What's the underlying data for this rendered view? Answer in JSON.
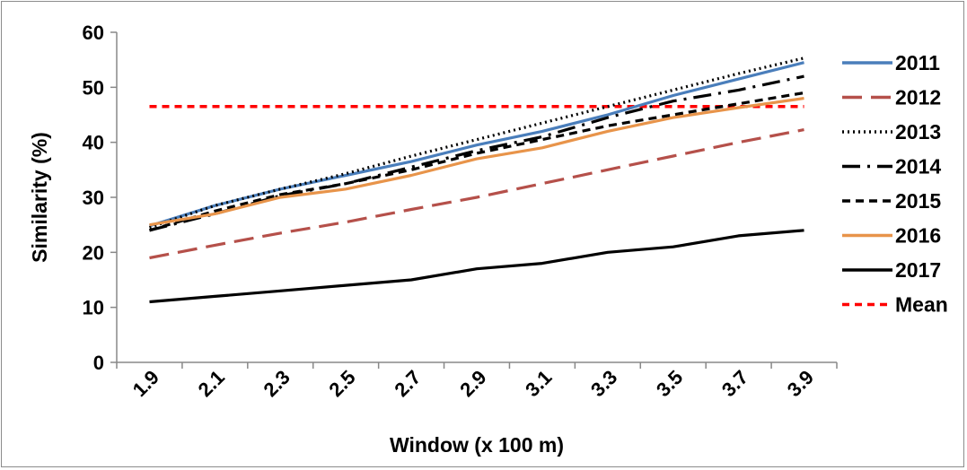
{
  "chart_data": {
    "type": "line",
    "xlabel": "Window (x 100 m)",
    "ylabel": "Similarity (%)",
    "x": [
      "1.9",
      "2.1",
      "2.3",
      "2.5",
      "2.7",
      "2.9",
      "3.1",
      "3.3",
      "3.5",
      "3.7",
      "3.9"
    ],
    "ylim": [
      0,
      60
    ],
    "yticks": [
      "0",
      "10",
      "20",
      "30",
      "40",
      "50",
      "60"
    ],
    "grid": false,
    "legend_position": "right",
    "series": [
      {
        "name": "2011",
        "color": "#4a7ebb",
        "dash": "solid",
        "values": [
          24.8,
          28.5,
          31.5,
          34.0,
          36.5,
          39.5,
          42.0,
          45.0,
          48.5,
          51.5,
          54.5
        ]
      },
      {
        "name": "2012",
        "color": "#b5504a",
        "dash": "longdash",
        "values": [
          19.0,
          21.3,
          23.5,
          25.5,
          27.8,
          30.0,
          32.5,
          35.0,
          37.5,
          40.0,
          42.3
        ]
      },
      {
        "name": "2013",
        "color": "#000000",
        "dash": "dotted",
        "values": [
          24.5,
          28.5,
          31.5,
          34.3,
          37.5,
          40.5,
          43.5,
          46.5,
          49.5,
          52.5,
          55.3
        ]
      },
      {
        "name": "2014",
        "color": "#000000",
        "dash": "dashdot",
        "values": [
          24.0,
          27.0,
          30.3,
          32.5,
          35.5,
          38.5,
          41.0,
          44.5,
          47.5,
          49.5,
          52.0
        ]
      },
      {
        "name": "2015",
        "color": "#000000",
        "dash": "dashed",
        "values": [
          24.0,
          27.5,
          30.5,
          32.5,
          35.0,
          38.0,
          40.5,
          43.0,
          45.0,
          47.0,
          49.0
        ]
      },
      {
        "name": "2016",
        "color": "#e8944a",
        "dash": "solid",
        "values": [
          25.0,
          27.0,
          30.0,
          31.5,
          34.0,
          37.0,
          39.0,
          42.0,
          44.5,
          46.3,
          48.0
        ]
      },
      {
        "name": "2017",
        "color": "#000000",
        "dash": "solid",
        "values": [
          11.0,
          12.0,
          13.0,
          14.0,
          15.0,
          17.0,
          18.0,
          20.0,
          21.0,
          23.0,
          24.0
        ]
      },
      {
        "name": "Mean",
        "color": "#ff0000",
        "dash": "shortdash",
        "values": [
          46.5,
          46.5,
          46.5,
          46.5,
          46.5,
          46.5,
          46.5,
          46.5,
          46.5,
          46.5,
          46.5
        ]
      }
    ]
  }
}
